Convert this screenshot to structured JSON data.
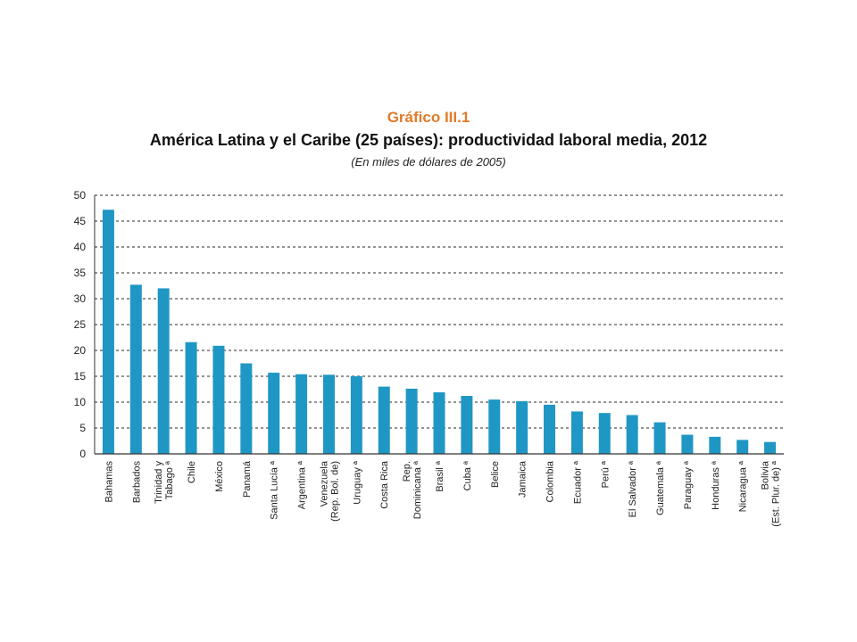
{
  "header": {
    "label": "Gráfico III.1",
    "label_color": "#e07b2a"
  },
  "chart_data": {
    "type": "bar",
    "title": "América Latina y el Caribe (25 países): productividad laboral media, 2012",
    "subtitle": "(En miles de dólares de 2005)",
    "xlabel": "",
    "ylabel": "",
    "ylim": [
      0,
      50
    ],
    "yticks": [
      0,
      5,
      10,
      15,
      20,
      25,
      30,
      35,
      40,
      45,
      50
    ],
    "grid": true,
    "bar_color": "#1f97c4",
    "categories": [
      "Bahamas",
      "Barbados",
      "Trinidad y Tabago ª",
      "Chile",
      "México",
      "Panamá",
      "Santa Lucía ª",
      "Argentina ª",
      "Venezuela (Rep. Bol. de)",
      "Uruguay ª",
      "Costa Rica",
      "Rep. Dominicana ª",
      "Brasil ª",
      "Cuba ª",
      "Belice",
      "Jamaica",
      "Colombia",
      "Ecuador ª",
      "Perú ª",
      "El Salvador ª",
      "Guatemala ª",
      "Paraguay ª",
      "Honduras ª",
      "Nicaragua ª",
      "Bolivia (Est. Plur. de) ª"
    ],
    "category_lines": [
      [
        "Bahamas"
      ],
      [
        "Barbados"
      ],
      [
        "Trinidad y",
        "Tabago ª"
      ],
      [
        "Chile"
      ],
      [
        "México"
      ],
      [
        "Panamá"
      ],
      [
        "Santa Lucía ª"
      ],
      [
        "Argentina ª"
      ],
      [
        "Venezuela",
        "(Rep. Bol. de)"
      ],
      [
        "Uruguay ª"
      ],
      [
        "Costa Rica"
      ],
      [
        "Rep.",
        "Dominicana ª"
      ],
      [
        "Brasil ª"
      ],
      [
        "Cuba ª"
      ],
      [
        "Belice"
      ],
      [
        "Jamaica"
      ],
      [
        "Colombia"
      ],
      [
        "Ecuador ª"
      ],
      [
        "Perú ª"
      ],
      [
        "El Salvador ª"
      ],
      [
        "Guatemala ª"
      ],
      [
        "Paraguay ª"
      ],
      [
        "Honduras ª"
      ],
      [
        "Nicaragua ª"
      ],
      [
        "Bolivia",
        "(Est. Plur. de) ª"
      ]
    ],
    "values": [
      47.2,
      32.7,
      32.0,
      21.6,
      20.9,
      17.5,
      15.7,
      15.4,
      15.3,
      15.0,
      13.0,
      12.6,
      11.9,
      11.2,
      10.5,
      10.2,
      9.5,
      8.2,
      7.9,
      7.5,
      6.1,
      3.7,
      3.3,
      2.7,
      2.3
    ]
  }
}
